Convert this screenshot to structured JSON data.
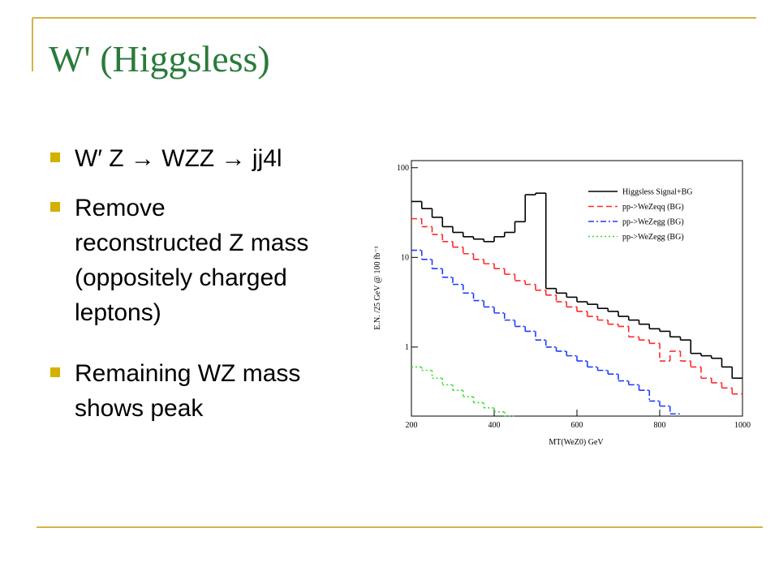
{
  "title": "W' (Higgsless)",
  "bullets": [
    [
      "W′ Z → WZZ → jj4l"
    ],
    [
      "Remove",
      "reconstructed Z mass",
      "(oppositely charged",
      "leptons)"
    ],
    [
      "Remaining WZ mass",
      "shows peak"
    ]
  ],
  "chart_data": {
    "type": "histogram",
    "xlabel": "MT(WeZ0)   GeV",
    "ylabel": "E.N. /25 GeV @ 100 fb⁻¹",
    "log_y": true,
    "bins": [
      200,
      225,
      250,
      275,
      300,
      325,
      350,
      375,
      400,
      425,
      450,
      475,
      500,
      525,
      550,
      575,
      600,
      625,
      650,
      675,
      700,
      725,
      750,
      775,
      800,
      825,
      850,
      875,
      900,
      925,
      950,
      975,
      1000
    ],
    "xlim": [
      200,
      1000
    ],
    "xticks": [
      200,
      400,
      600,
      800,
      1000
    ],
    "ylim": [
      0.17,
      120
    ],
    "yticks": [
      1,
      10,
      100
    ],
    "legend": "upper right",
    "series": [
      {
        "name": "Higgsless Signal+BG",
        "color": "#000000",
        "style": "solid",
        "values": [
          42,
          35,
          28,
          22,
          19,
          17,
          16,
          15,
          17,
          19,
          25,
          50,
          52,
          4.5,
          4.0,
          3.6,
          3.2,
          3.0,
          2.7,
          2.5,
          2.2,
          2.0,
          1.8,
          1.6,
          1.5,
          1.3,
          1.2,
          0.85,
          0.8,
          0.75,
          0.6,
          0.45
        ]
      },
      {
        "name": "pp->WeZeqq (BG)",
        "color": "#ff2a2a",
        "style": "dashed",
        "values": [
          27,
          22,
          18,
          15,
          13,
          11,
          9.5,
          8.5,
          7.5,
          6.5,
          5.5,
          5.0,
          4.3,
          3.8,
          3.2,
          2.8,
          2.5,
          2.2,
          2.0,
          1.8,
          1.7,
          1.3,
          1.2,
          1.1,
          0.7,
          0.9,
          0.7,
          0.6,
          0.45,
          0.4,
          0.35,
          0.3
        ]
      },
      {
        "name": "pp->WeZegg (BG)",
        "color": "#1f3cff",
        "style": "dashdot",
        "values": [
          12,
          9.5,
          7.5,
          6,
          5,
          4,
          3.3,
          2.8,
          2.4,
          2.0,
          1.7,
          1.5,
          1.2,
          1.0,
          0.9,
          0.8,
          0.7,
          0.6,
          0.55,
          0.5,
          0.42,
          0.38,
          0.33,
          0.25,
          0.22,
          0.18,
          null,
          null,
          null,
          null,
          null,
          null
        ]
      },
      {
        "name": "pp->WeZegg (BG)",
        "color": "#33dd33",
        "style": "dotted",
        "values": [
          0.6,
          0.55,
          0.45,
          0.38,
          0.33,
          0.28,
          0.24,
          0.21,
          0.19,
          0.17,
          null,
          null,
          null,
          null,
          null,
          null,
          null,
          null,
          null,
          null,
          null,
          null,
          null,
          null,
          null,
          null,
          null,
          null,
          null,
          null,
          null,
          null
        ]
      }
    ]
  }
}
